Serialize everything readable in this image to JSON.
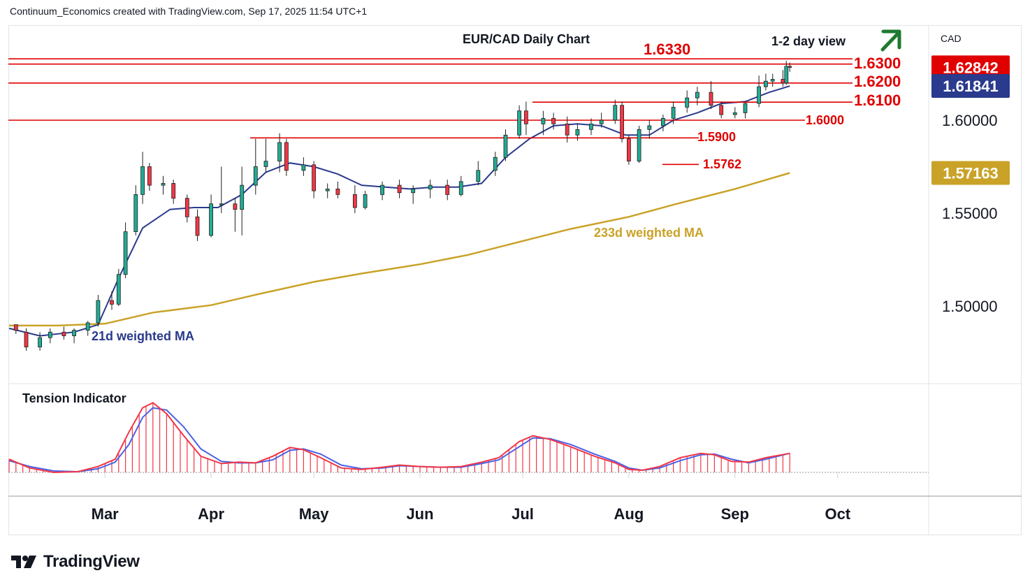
{
  "header": {
    "credit": "Continuum_Economics created with TradingView.com, Sep 17, 2025 11:54 UTC+1"
  },
  "brand": {
    "logo_icon": "tradingview-logo-icon",
    "name": "TradingView"
  },
  "colors": {
    "up_candle": "#22ab94",
    "down_candle": "#f23645",
    "level_line": "#e00000",
    "ma21": "#2a3a8c",
    "ma233": "#c9a227",
    "tension_red": "#f23645",
    "tension_blue": "#4a62e6",
    "arrow": "#1e7a2e"
  },
  "chart_data": [
    {
      "type": "candlestick",
      "title": "EUR/CAD Daily Chart",
      "annotation": "1-2 day view",
      "trend_arrow": "up-right-arrow-icon",
      "currency": "CAD",
      "x_labels": [
        "Mar",
        "Apr",
        "May",
        "Jun",
        "Jul",
        "Aug",
        "Sep",
        "Oct"
      ],
      "y_ticks": [
        1.5,
        1.55,
        1.6
      ],
      "y_tick_labels": [
        "1.50000",
        "1.55000",
        "1.60000"
      ],
      "ylim": [
        1.46,
        1.65
      ],
      "levels": [
        {
          "label": "1.6330",
          "value": 1.633
        },
        {
          "label": "1.6300",
          "value": 1.6302
        },
        {
          "label": "1.6200",
          "value": 1.62
        },
        {
          "label": "1.6100",
          "value": 1.6097
        },
        {
          "label": "1.6000",
          "value": 1.6
        },
        {
          "label": "1.5900",
          "value": 1.5905
        },
        {
          "label": "1.5762",
          "value": 1.5762
        }
      ],
      "price_badges": [
        {
          "label": "1.62842",
          "value": 1.62842,
          "color": "#e00000"
        },
        {
          "label": "1.61841",
          "value": 1.61841,
          "color": "#2a3a8c"
        },
        {
          "label": "1.57163",
          "value": 1.57163,
          "color": "#c9a227"
        }
      ],
      "series_labels": {
        "ma21": "21d weighted MA",
        "ma233": "233d weighted MA"
      },
      "ma21": [
        [
          "2025-02-01",
          1.488
        ],
        [
          "2025-02-10",
          1.484
        ],
        [
          "2025-02-20",
          1.486
        ],
        [
          "2025-02-27",
          1.49
        ],
        [
          "2025-03-05",
          1.515
        ],
        [
          "2025-03-12",
          1.542
        ],
        [
          "2025-03-20",
          1.552
        ],
        [
          "2025-03-27",
          1.553
        ],
        [
          "2025-04-03",
          1.553
        ],
        [
          "2025-04-10",
          1.56
        ],
        [
          "2025-04-17",
          1.572
        ],
        [
          "2025-04-24",
          1.577
        ],
        [
          "2025-05-01",
          1.575
        ],
        [
          "2025-05-08",
          1.571
        ],
        [
          "2025-05-15",
          1.565
        ],
        [
          "2025-05-22",
          1.564
        ],
        [
          "2025-05-29",
          1.563
        ],
        [
          "2025-06-05",
          1.564
        ],
        [
          "2025-06-12",
          1.564
        ],
        [
          "2025-06-19",
          1.566
        ],
        [
          "2025-06-26",
          1.58
        ],
        [
          "2025-07-03",
          1.59
        ],
        [
          "2025-07-10",
          1.597
        ],
        [
          "2025-07-17",
          1.598
        ],
        [
          "2025-07-24",
          1.597
        ],
        [
          "2025-07-31",
          1.592
        ],
        [
          "2025-08-07",
          1.592
        ],
        [
          "2025-08-14",
          1.6
        ],
        [
          "2025-08-21",
          1.604
        ],
        [
          "2025-08-28",
          1.609
        ],
        [
          "2025-09-04",
          1.61
        ],
        [
          "2025-09-11",
          1.615
        ],
        [
          "2025-09-17",
          1.6184
        ]
      ],
      "ma233": [
        [
          "2025-02-01",
          1.4895
        ],
        [
          "2025-02-15",
          1.4895
        ],
        [
          "2025-03-01",
          1.4905
        ],
        [
          "2025-03-15",
          1.4965
        ],
        [
          "2025-04-01",
          1.5005
        ],
        [
          "2025-04-15",
          1.5065
        ],
        [
          "2025-05-01",
          1.513
        ],
        [
          "2025-05-15",
          1.5175
        ],
        [
          "2025-06-01",
          1.5225
        ],
        [
          "2025-06-15",
          1.5275
        ],
        [
          "2025-07-01",
          1.535
        ],
        [
          "2025-07-15",
          1.5415
        ],
        [
          "2025-08-01",
          1.548
        ],
        [
          "2025-08-15",
          1.555
        ],
        [
          "2025-09-01",
          1.563
        ],
        [
          "2025-09-17",
          1.5716
        ]
      ],
      "candles": [
        [
          "2025-02-03",
          1.49,
          1.49,
          1.485,
          1.487
        ],
        [
          "2025-02-06",
          1.486,
          1.488,
          1.476,
          1.478
        ],
        [
          "2025-02-10",
          1.478,
          1.486,
          1.476,
          1.483
        ],
        [
          "2025-02-13",
          1.483,
          1.488,
          1.48,
          1.486
        ],
        [
          "2025-02-17",
          1.486,
          1.489,
          1.482,
          1.484
        ],
        [
          "2025-02-20",
          1.484,
          1.488,
          1.48,
          1.487
        ],
        [
          "2025-02-24",
          1.487,
          1.492,
          1.484,
          1.491
        ],
        [
          "2025-02-27",
          1.491,
          1.506,
          1.489,
          1.503
        ],
        [
          "2025-03-03",
          1.503,
          1.508,
          1.498,
          1.501
        ],
        [
          "2025-03-05",
          1.501,
          1.52,
          1.5,
          1.517
        ],
        [
          "2025-03-07",
          1.517,
          1.545,
          1.515,
          1.54
        ],
        [
          "2025-03-10",
          1.54,
          1.565,
          1.538,
          1.56
        ],
        [
          "2025-03-12",
          1.56,
          1.583,
          1.555,
          1.575
        ],
        [
          "2025-03-14",
          1.575,
          1.577,
          1.562,
          1.565
        ],
        [
          "2025-03-18",
          1.565,
          1.57,
          1.56,
          1.566
        ],
        [
          "2025-03-21",
          1.566,
          1.568,
          1.555,
          1.558
        ],
        [
          "2025-03-25",
          1.558,
          1.56,
          1.545,
          1.548
        ],
        [
          "2025-03-28",
          1.548,
          1.552,
          1.535,
          1.538
        ],
        [
          "2025-04-01",
          1.538,
          1.56,
          1.537,
          1.555
        ],
        [
          "2025-04-04",
          1.555,
          1.575,
          1.55,
          1.555
        ],
        [
          "2025-04-08",
          1.555,
          1.558,
          1.54,
          1.552
        ],
        [
          "2025-04-10",
          1.552,
          1.575,
          1.538,
          1.565
        ],
        [
          "2025-04-14",
          1.565,
          1.59,
          1.56,
          1.575
        ],
        [
          "2025-04-17",
          1.575,
          1.59,
          1.572,
          1.578
        ],
        [
          "2025-04-21",
          1.578,
          1.593,
          1.572,
          1.588
        ],
        [
          "2025-04-23",
          1.588,
          1.59,
          1.57,
          1.573
        ],
        [
          "2025-04-28",
          1.573,
          1.58,
          1.57,
          1.576
        ],
        [
          "2025-05-01",
          1.576,
          1.578,
          1.558,
          1.562
        ],
        [
          "2025-05-05",
          1.562,
          1.566,
          1.558,
          1.563
        ],
        [
          "2025-05-08",
          1.563,
          1.567,
          1.558,
          1.56
        ],
        [
          "2025-05-13",
          1.56,
          1.565,
          1.55,
          1.553
        ],
        [
          "2025-05-16",
          1.553,
          1.562,
          1.552,
          1.56
        ],
        [
          "2025-05-21",
          1.56,
          1.567,
          1.557,
          1.565
        ],
        [
          "2025-05-26",
          1.565,
          1.568,
          1.558,
          1.561
        ],
        [
          "2025-05-30",
          1.561,
          1.565,
          1.555,
          1.563
        ],
        [
          "2025-06-04",
          1.563,
          1.568,
          1.558,
          1.565
        ],
        [
          "2025-06-09",
          1.565,
          1.568,
          1.557,
          1.56
        ],
        [
          "2025-06-13",
          1.56,
          1.57,
          1.559,
          1.567
        ],
        [
          "2025-06-18",
          1.567,
          1.578,
          1.565,
          1.573
        ],
        [
          "2025-06-23",
          1.573,
          1.583,
          1.57,
          1.58
        ],
        [
          "2025-06-26",
          1.58,
          1.595,
          1.578,
          1.592
        ],
        [
          "2025-06-30",
          1.592,
          1.608,
          1.59,
          1.605
        ],
        [
          "2025-07-02",
          1.605,
          1.61,
          1.592,
          1.598
        ],
        [
          "2025-07-07",
          1.598,
          1.605,
          1.592,
          1.601
        ],
        [
          "2025-07-10",
          1.601,
          1.604,
          1.595,
          1.598
        ],
        [
          "2025-07-14",
          1.598,
          1.602,
          1.588,
          1.592
        ],
        [
          "2025-07-17",
          1.592,
          1.598,
          1.589,
          1.595
        ],
        [
          "2025-07-21",
          1.595,
          1.601,
          1.592,
          1.598
        ],
        [
          "2025-07-24",
          1.598,
          1.604,
          1.596,
          1.6
        ],
        [
          "2025-07-28",
          1.6,
          1.611,
          1.598,
          1.608
        ],
        [
          "2025-07-30",
          1.608,
          1.61,
          1.588,
          1.59
        ],
        [
          "2025-08-01",
          1.59,
          1.592,
          1.576,
          1.578
        ],
        [
          "2025-08-04",
          1.578,
          1.597,
          1.577,
          1.595
        ],
        [
          "2025-08-07",
          1.595,
          1.6,
          1.59,
          1.597
        ],
        [
          "2025-08-11",
          1.597,
          1.603,
          1.594,
          1.601
        ],
        [
          "2025-08-14",
          1.601,
          1.61,
          1.598,
          1.607
        ],
        [
          "2025-08-18",
          1.607,
          1.616,
          1.604,
          1.612
        ],
        [
          "2025-08-21",
          1.612,
          1.618,
          1.608,
          1.615
        ],
        [
          "2025-08-25",
          1.615,
          1.621,
          1.606,
          1.608
        ],
        [
          "2025-08-28",
          1.608,
          1.61,
          1.601,
          1.603
        ],
        [
          "2025-09-01",
          1.603,
          1.607,
          1.601,
          1.604
        ],
        [
          "2025-09-04",
          1.604,
          1.61,
          1.601,
          1.609
        ],
        [
          "2025-09-08",
          1.609,
          1.624,
          1.607,
          1.618
        ],
        [
          "2025-09-10",
          1.618,
          1.625,
          1.616,
          1.621
        ],
        [
          "2025-09-12",
          1.621,
          1.625,
          1.618,
          1.622
        ],
        [
          "2025-09-15",
          1.622,
          1.627,
          1.618,
          1.62
        ],
        [
          "2025-09-16",
          1.62,
          1.632,
          1.619,
          1.629
        ],
        [
          "2025-09-17",
          1.629,
          1.631,
          1.626,
          1.6284
        ]
      ]
    },
    {
      "type": "line",
      "title": "Tension Indicator",
      "series": [
        {
          "values": [
            [
              "2025-02-01",
              0.18
            ],
            [
              "2025-02-07",
              0.06
            ],
            [
              "2025-02-14",
              0.0
            ],
            [
              "2025-02-21",
              0.01
            ],
            [
              "2025-02-27",
              0.08
            ],
            [
              "2025-03-04",
              0.18
            ],
            [
              "2025-03-08",
              0.55
            ],
            [
              "2025-03-12",
              0.88
            ],
            [
              "2025-03-15",
              0.95
            ],
            [
              "2025-03-19",
              0.8
            ],
            [
              "2025-03-24",
              0.5
            ],
            [
              "2025-03-29",
              0.22
            ],
            [
              "2025-04-04",
              0.12
            ],
            [
              "2025-04-09",
              0.14
            ],
            [
              "2025-04-14",
              0.13
            ],
            [
              "2025-04-19",
              0.22
            ],
            [
              "2025-04-24",
              0.34
            ],
            [
              "2025-04-28",
              0.31
            ],
            [
              "2025-05-03",
              0.2
            ],
            [
              "2025-05-09",
              0.06
            ],
            [
              "2025-05-15",
              0.04
            ],
            [
              "2025-05-21",
              0.07
            ],
            [
              "2025-05-26",
              0.1
            ],
            [
              "2025-06-01",
              0.08
            ],
            [
              "2025-06-07",
              0.07
            ],
            [
              "2025-06-13",
              0.08
            ],
            [
              "2025-06-19",
              0.14
            ],
            [
              "2025-06-24",
              0.2
            ],
            [
              "2025-06-30",
              0.42
            ],
            [
              "2025-07-04",
              0.5
            ],
            [
              "2025-07-09",
              0.45
            ],
            [
              "2025-07-15",
              0.35
            ],
            [
              "2025-07-22",
              0.22
            ],
            [
              "2025-07-28",
              0.13
            ],
            [
              "2025-08-01",
              0.04
            ],
            [
              "2025-08-05",
              0.03
            ],
            [
              "2025-08-10",
              0.08
            ],
            [
              "2025-08-16",
              0.2
            ],
            [
              "2025-08-22",
              0.26
            ],
            [
              "2025-08-26",
              0.24
            ],
            [
              "2025-08-31",
              0.15
            ],
            [
              "2025-09-05",
              0.14
            ],
            [
              "2025-09-10",
              0.2
            ],
            [
              "2025-09-17",
              0.26
            ]
          ]
        },
        {
          "values": [
            [
              "2025-02-01",
              0.16
            ],
            [
              "2025-02-07",
              0.08
            ],
            [
              "2025-02-14",
              0.02
            ],
            [
              "2025-02-21",
              0.01
            ],
            [
              "2025-02-27",
              0.05
            ],
            [
              "2025-03-04",
              0.14
            ],
            [
              "2025-03-08",
              0.38
            ],
            [
              "2025-03-12",
              0.75
            ],
            [
              "2025-03-15",
              0.88
            ],
            [
              "2025-03-19",
              0.85
            ],
            [
              "2025-03-24",
              0.62
            ],
            [
              "2025-03-29",
              0.32
            ],
            [
              "2025-04-04",
              0.15
            ],
            [
              "2025-04-09",
              0.13
            ],
            [
              "2025-04-14",
              0.13
            ],
            [
              "2025-04-19",
              0.17
            ],
            [
              "2025-04-24",
              0.3
            ],
            [
              "2025-04-28",
              0.32
            ],
            [
              "2025-05-03",
              0.25
            ],
            [
              "2025-05-09",
              0.1
            ],
            [
              "2025-05-15",
              0.05
            ],
            [
              "2025-05-21",
              0.06
            ],
            [
              "2025-05-26",
              0.09
            ],
            [
              "2025-06-01",
              0.08
            ],
            [
              "2025-06-07",
              0.07
            ],
            [
              "2025-06-13",
              0.07
            ],
            [
              "2025-06-19",
              0.12
            ],
            [
              "2025-06-24",
              0.17
            ],
            [
              "2025-06-30",
              0.35
            ],
            [
              "2025-07-04",
              0.47
            ],
            [
              "2025-07-09",
              0.46
            ],
            [
              "2025-07-15",
              0.38
            ],
            [
              "2025-07-22",
              0.25
            ],
            [
              "2025-07-28",
              0.15
            ],
            [
              "2025-08-01",
              0.06
            ],
            [
              "2025-08-05",
              0.03
            ],
            [
              "2025-08-10",
              0.06
            ],
            [
              "2025-08-16",
              0.16
            ],
            [
              "2025-08-22",
              0.24
            ],
            [
              "2025-08-26",
              0.25
            ],
            [
              "2025-08-31",
              0.18
            ],
            [
              "2025-09-05",
              0.13
            ],
            [
              "2025-09-10",
              0.18
            ],
            [
              "2025-09-17",
              0.26
            ]
          ]
        }
      ]
    }
  ]
}
